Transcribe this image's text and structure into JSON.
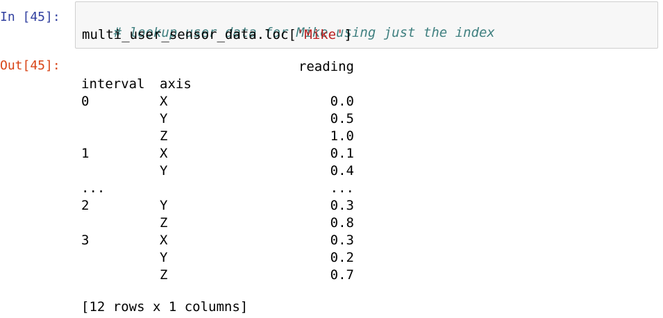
{
  "input_cell": {
    "prompt": "In [45]:",
    "comment": "# lookup user data for Mike using just the index",
    "code_prefix": "multi_user_sensor_data.loc[",
    "code_string": "'Mike'",
    "code_suffix": "]"
  },
  "output_cell": {
    "prompt": "Out[45]:",
    "column_header": "reading",
    "index_names": [
      "interval",
      "axis"
    ],
    "rows": [
      {
        "interval": "0",
        "axis": "X",
        "reading": "0.0"
      },
      {
        "interval": "",
        "axis": "Y",
        "reading": "0.5"
      },
      {
        "interval": "",
        "axis": "Z",
        "reading": "1.0"
      },
      {
        "interval": "1",
        "axis": "X",
        "reading": "0.1"
      },
      {
        "interval": "",
        "axis": "Y",
        "reading": "0.4"
      },
      {
        "interval": "...",
        "axis": "",
        "reading": "..."
      },
      {
        "interval": "2",
        "axis": "Y",
        "reading": "0.3"
      },
      {
        "interval": "",
        "axis": "Z",
        "reading": "0.8"
      },
      {
        "interval": "3",
        "axis": "X",
        "reading": "0.3"
      },
      {
        "interval": "",
        "axis": "Y",
        "reading": "0.2"
      },
      {
        "interval": "",
        "axis": "Z",
        "reading": "0.7"
      }
    ],
    "footer": "[12 rows x 1 columns]"
  }
}
